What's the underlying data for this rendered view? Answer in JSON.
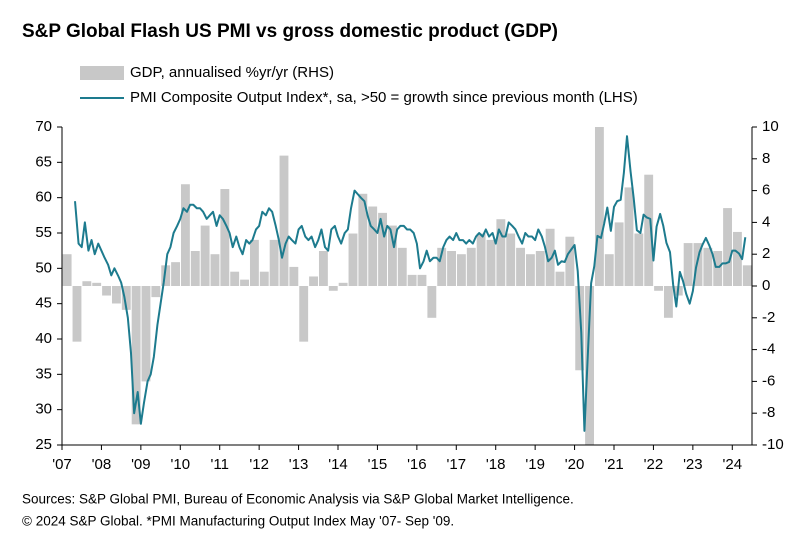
{
  "chart_data": {
    "type": "bar-line",
    "title": "S&P Global Flash US PMI vs gross domestic product (GDP)",
    "xlim": [
      2007,
      2024.5
    ],
    "xticks": [
      {
        "value": 2007,
        "label": "'07"
      },
      {
        "value": 2008,
        "label": "'08"
      },
      {
        "value": 2009,
        "label": "'09"
      },
      {
        "value": 2010,
        "label": "'10"
      },
      {
        "value": 2011,
        "label": "'11"
      },
      {
        "value": 2012,
        "label": "'12"
      },
      {
        "value": 2013,
        "label": "'13"
      },
      {
        "value": 2014,
        "label": "'14"
      },
      {
        "value": 2015,
        "label": "'15"
      },
      {
        "value": 2016,
        "label": "'16"
      },
      {
        "value": 2017,
        "label": "'17"
      },
      {
        "value": 2018,
        "label": "'18"
      },
      {
        "value": 2019,
        "label": "'19"
      },
      {
        "value": 2020,
        "label": "'20"
      },
      {
        "value": 2021,
        "label": "'21"
      },
      {
        "value": 2022,
        "label": "'22"
      },
      {
        "value": 2023,
        "label": "'23"
      },
      {
        "value": 2024,
        "label": "'24"
      }
    ],
    "ylim": [
      25,
      70
    ],
    "yticks": [
      25,
      30,
      35,
      40,
      45,
      50,
      55,
      60,
      65,
      70
    ],
    "y2lim": [
      -10,
      10
    ],
    "y2ticks": [
      -10,
      -8,
      -6,
      -4,
      -2,
      0,
      2,
      4,
      6,
      8,
      10
    ],
    "series": [
      {
        "name": "GDP, annualised %yr/yr (RHS)",
        "type": "bar",
        "axis": "y2",
        "color": "#c8c8c8",
        "x": [
          2007.13,
          2007.38,
          2007.63,
          2007.88,
          2008.13,
          2008.38,
          2008.63,
          2008.88,
          2009.13,
          2009.38,
          2009.63,
          2009.88,
          2010.13,
          2010.38,
          2010.63,
          2010.88,
          2011.13,
          2011.38,
          2011.63,
          2011.88,
          2012.13,
          2012.38,
          2012.63,
          2012.88,
          2013.13,
          2013.38,
          2013.63,
          2013.88,
          2014.13,
          2014.38,
          2014.63,
          2014.88,
          2015.13,
          2015.38,
          2015.63,
          2015.88,
          2016.13,
          2016.38,
          2016.63,
          2016.88,
          2017.13,
          2017.38,
          2017.63,
          2017.88,
          2018.13,
          2018.38,
          2018.63,
          2018.88,
          2019.13,
          2019.38,
          2019.63,
          2019.88,
          2020.13,
          2020.38,
          2020.63,
          2020.88,
          2021.13,
          2021.38,
          2021.63,
          2021.88,
          2022.13,
          2022.38,
          2022.63,
          2022.88,
          2023.13,
          2023.38,
          2023.63,
          2023.88,
          2024.13,
          2024.38
        ],
        "values": [
          2.0,
          -3.5,
          0.3,
          0.2,
          -0.6,
          -1.1,
          -1.5,
          -8.7,
          -6.0,
          -0.7,
          1.3,
          1.5,
          6.4,
          2.2,
          3.8,
          2.0,
          6.1,
          0.9,
          0.4,
          2.9,
          0.9,
          2.9,
          8.2,
          1.2,
          -3.5,
          0.6,
          2.2,
          -0.3,
          0.2,
          3.3,
          5.8,
          5.0,
          4.6,
          3.8,
          2.4,
          0.7,
          0.7,
          -2.0,
          2.4,
          2.2,
          2.0,
          2.4,
          3.3,
          2.9,
          4.2,
          3.3,
          2.4,
          2.0,
          2.2,
          3.6,
          0.9,
          3.1,
          -5.3,
          -10,
          10,
          2.0,
          4.0,
          6.2,
          3.3,
          7.0,
          -0.3,
          -2.0,
          -0.6,
          2.7,
          2.7,
          2.4,
          2.2,
          4.9,
          3.4,
          1.3
        ]
      },
      {
        "name": "PMI Composite Output Index*, sa, >50 = growth since previous month (LHS)",
        "type": "line",
        "color": "#1d7b8e",
        "x": [
          2007.33,
          2007.42,
          2007.5,
          2007.58,
          2007.67,
          2007.75,
          2007.83,
          2007.92,
          2008,
          2008.08,
          2008.17,
          2008.25,
          2008.33,
          2008.42,
          2008.5,
          2008.58,
          2008.67,
          2008.75,
          2008.83,
          2008.92,
          2009,
          2009.08,
          2009.17,
          2009.25,
          2009.33,
          2009.42,
          2009.5,
          2009.58,
          2009.67,
          2009.75,
          2009.83,
          2009.92,
          2010,
          2010.08,
          2010.17,
          2010.25,
          2010.33,
          2010.42,
          2010.5,
          2010.58,
          2010.67,
          2010.75,
          2010.83,
          2010.92,
          2011,
          2011.08,
          2011.17,
          2011.25,
          2011.33,
          2011.42,
          2011.5,
          2011.58,
          2011.67,
          2011.75,
          2011.83,
          2011.92,
          2012,
          2012.08,
          2012.17,
          2012.25,
          2012.33,
          2012.42,
          2012.5,
          2012.58,
          2012.67,
          2012.75,
          2012.83,
          2012.92,
          2013,
          2013.08,
          2013.17,
          2013.25,
          2013.33,
          2013.42,
          2013.5,
          2013.58,
          2013.67,
          2013.75,
          2013.83,
          2013.92,
          2014,
          2014.08,
          2014.17,
          2014.25,
          2014.33,
          2014.42,
          2014.5,
          2014.58,
          2014.67,
          2014.75,
          2014.83,
          2014.92,
          2015,
          2015.08,
          2015.17,
          2015.25,
          2015.33,
          2015.42,
          2015.5,
          2015.58,
          2015.67,
          2015.75,
          2015.83,
          2015.92,
          2016,
          2016.08,
          2016.17,
          2016.25,
          2016.33,
          2016.42,
          2016.5,
          2016.58,
          2016.67,
          2016.75,
          2016.83,
          2016.92,
          2017,
          2017.08,
          2017.17,
          2017.25,
          2017.33,
          2017.42,
          2017.5,
          2017.58,
          2017.67,
          2017.75,
          2017.83,
          2017.92,
          2018,
          2018.08,
          2018.17,
          2018.25,
          2018.33,
          2018.42,
          2018.5,
          2018.58,
          2018.67,
          2018.75,
          2018.83,
          2018.92,
          2019,
          2019.08,
          2019.17,
          2019.25,
          2019.33,
          2019.42,
          2019.5,
          2019.58,
          2019.67,
          2019.75,
          2019.83,
          2019.92,
          2020,
          2020.08,
          2020.17,
          2020.25,
          2020.33,
          2020.42,
          2020.5,
          2020.58,
          2020.67,
          2020.75,
          2020.83,
          2020.92,
          2021,
          2021.08,
          2021.17,
          2021.25,
          2021.33,
          2021.42,
          2021.5,
          2021.58,
          2021.67,
          2021.75,
          2021.83,
          2021.92,
          2022,
          2022.08,
          2022.17,
          2022.25,
          2022.33,
          2022.42,
          2022.5,
          2022.58,
          2022.67,
          2022.75,
          2022.83,
          2022.92,
          2023,
          2023.08,
          2023.17,
          2023.25,
          2023.33,
          2023.42,
          2023.5,
          2023.58,
          2023.67,
          2023.75,
          2023.83,
          2023.92,
          2024,
          2024.08,
          2024.17,
          2024.25,
          2024.33
        ],
        "values": [
          59.5,
          53.5,
          53.0,
          56.5,
          52.5,
          54.0,
          52.0,
          53.5,
          52.5,
          51.5,
          50.5,
          49,
          50,
          49,
          48,
          46,
          43,
          38,
          29.5,
          32.5,
          28,
          31,
          34,
          35,
          37.5,
          42,
          45,
          48,
          52,
          53,
          55,
          56,
          57,
          58.5,
          58,
          59,
          59,
          58.5,
          58.5,
          58,
          57,
          57.5,
          58,
          56,
          57.5,
          57,
          56,
          55,
          53,
          54.5,
          53,
          52,
          54,
          53.5,
          54,
          55.5,
          56,
          58,
          57.5,
          58.5,
          58,
          56,
          54,
          51.5,
          53.5,
          54.5,
          54,
          53.5,
          55.5,
          56,
          54.5,
          54,
          54.5,
          53,
          54,
          55.5,
          53,
          52.5,
          55.5,
          56,
          54.5,
          53.5,
          55,
          55.5,
          58.5,
          61,
          60.5,
          60,
          59.5,
          57.5,
          56,
          55.5,
          55,
          57,
          54.5,
          56,
          55.5,
          53,
          55.5,
          56,
          56,
          55.5,
          55.5,
          55,
          53.5,
          50,
          51,
          52.5,
          51,
          51.5,
          51.5,
          51,
          53,
          54,
          54.5,
          54,
          55,
          54,
          54,
          53.5,
          54,
          53.5,
          54.5,
          55,
          54.5,
          55.5,
          54.5,
          55,
          53.5,
          55.5,
          54.5,
          54.5,
          56.5,
          56,
          55.5,
          54.5,
          53.5,
          55,
          54.5,
          54.5,
          54,
          55.5,
          54.5,
          53,
          51,
          51.5,
          52.5,
          50.5,
          51,
          50.9,
          52,
          52.7,
          53.3,
          49.6,
          40.9,
          27,
          37,
          47.9,
          50.3,
          54.6,
          54.3,
          56.3,
          58.6,
          55.3,
          58.7,
          59.5,
          59.7,
          63.5,
          68.7,
          63.7,
          59.9,
          55.4,
          55,
          57.6,
          57.2,
          57,
          51.1,
          55.9,
          57.7,
          56,
          53.6,
          52.3,
          47.7,
          44.6,
          49.5,
          48.2,
          46.4,
          45,
          46.8,
          50.1,
          52.3,
          53.4,
          54.3,
          53.2,
          52,
          50.2,
          50.2,
          50.7,
          50.7,
          50.9,
          52.5,
          52.5,
          52.1,
          51.3,
          54.4
        ]
      }
    ],
    "source": [
      "Sources: S&P Global PMI, Bureau of Economic Analysis via S&P Global Market Intelligence.",
      "© 2024 S&P Global.  *PMI Manufacturing Output Index May '07- Sep '09."
    ]
  }
}
